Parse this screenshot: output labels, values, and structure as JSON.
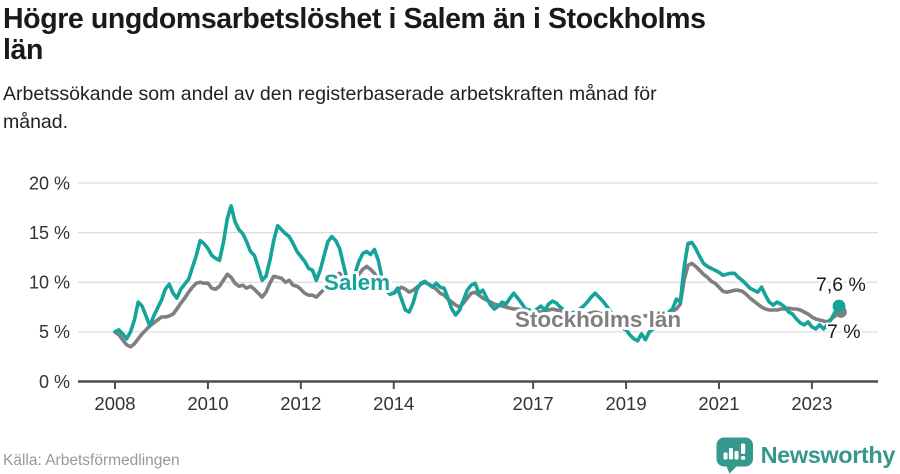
{
  "header": {
    "title_lines": [
      "Högre ungdomsarbetslöshet i Salem än i Stockholms",
      "län"
    ],
    "subtitle_lines": [
      "Arbetssökande som andel av den registerbaserade arbetskraften månad för",
      "månad."
    ]
  },
  "footer": {
    "source": "Källa: Arbetsförmedlingen",
    "brand": "Newsworthy",
    "brand_icon": "newsworthy-speech-bubble-bar-chart-icon"
  },
  "colors": {
    "salem": "#16a39a",
    "stockholm": "#7f7f7f",
    "grid": "#dddddd",
    "axis": "#4d4d4d",
    "tick_text": "#333333",
    "annotation_text": "#1a1a1a",
    "source_text": "#999999",
    "logo": "#35988d",
    "halo": "#ffffff"
  },
  "chart_data": {
    "type": "line",
    "title": "Högre ungdomsarbetslöshet i Salem än i Stockholms län",
    "subtitle": "Arbetssökande som andel av den registerbaserade arbetskraften månad för månad.",
    "unit": "%",
    "frequency": "monthly",
    "x_start": "2008-01",
    "x_end": "2023-08",
    "ylim": [
      0,
      21
    ],
    "grid": true,
    "y_ticks": [
      {
        "value": 0,
        "label": "0 %"
      },
      {
        "value": 5,
        "label": "5 %"
      },
      {
        "value": 10,
        "label": "10 %"
      },
      {
        "value": 15,
        "label": "15 %"
      },
      {
        "value": 20,
        "label": "20 %"
      }
    ],
    "x_ticks": [
      {
        "year": 2008,
        "label": "2008"
      },
      {
        "year": 2010,
        "label": "2010"
      },
      {
        "year": 2012,
        "label": "2012"
      },
      {
        "year": 2014,
        "label": "2014"
      },
      {
        "year": 2017,
        "label": "2017"
      },
      {
        "year": 2019,
        "label": "2019"
      },
      {
        "year": 2021,
        "label": "2021"
      },
      {
        "year": 2023,
        "label": "2023"
      }
    ],
    "series": [
      {
        "name": "Salem",
        "color": "#16a39a",
        "end_label": "7,6 %",
        "end_value": 7.6,
        "values": [
          5.0,
          5.2,
          4.8,
          4.3,
          5.0,
          6.2,
          8.0,
          7.6,
          6.6,
          5.6,
          6.6,
          7.4,
          8.2,
          9.3,
          9.8,
          8.9,
          8.4,
          9.3,
          9.8,
          10.3,
          11.5,
          12.7,
          14.2,
          13.9,
          13.4,
          12.7,
          12.4,
          12.2,
          14.0,
          16.4,
          17.7,
          16.1,
          15.3,
          14.9,
          14.1,
          13.1,
          12.7,
          11.5,
          10.2,
          10.6,
          12.2,
          14.2,
          15.7,
          15.3,
          14.9,
          14.6,
          13.9,
          13.1,
          12.6,
          12.1,
          11.4,
          11.2,
          10.2,
          11.2,
          12.7,
          14.1,
          14.6,
          14.2,
          13.4,
          11.8,
          10.2,
          9.7,
          10.9,
          12.1,
          12.9,
          13.1,
          12.8,
          13.3,
          12.2,
          10.4,
          9.2,
          8.8,
          8.9,
          9.4,
          8.3,
          7.2,
          7.0,
          7.9,
          9.3,
          9.9,
          10.1,
          9.8,
          9.5,
          9.9,
          9.5,
          9.4,
          8.4,
          7.3,
          6.7,
          7.2,
          8.2,
          9.2,
          9.7,
          9.9,
          8.9,
          9.2,
          8.4,
          7.7,
          7.3,
          7.6,
          8.0,
          7.8,
          8.4,
          8.9,
          8.4,
          7.9,
          7.3,
          7.2,
          7.0,
          7.3,
          7.6,
          7.2,
          7.8,
          8.1,
          7.9,
          7.5,
          7.2,
          7.0,
          6.9,
          7.0,
          7.3,
          7.6,
          8.0,
          8.5,
          8.9,
          8.5,
          8.1,
          7.6,
          7.0,
          6.4,
          5.8,
          5.4,
          5.2,
          4.7,
          4.3,
          4.1,
          4.8,
          4.2,
          5.0,
          5.3,
          5.7,
          6.1,
          6.6,
          7.0,
          7.3,
          8.3,
          8.0,
          11.5,
          13.9,
          14.0,
          13.4,
          12.6,
          11.9,
          11.6,
          11.4,
          11.2,
          11.0,
          10.7,
          10.8,
          10.9,
          10.9,
          10.5,
          10.2,
          9.8,
          9.4,
          9.2,
          9.0,
          9.5,
          8.7,
          8.0,
          7.7,
          8.0,
          7.8,
          7.5,
          7.0,
          6.8,
          6.3,
          5.9,
          5.7,
          6.0,
          5.5,
          5.3,
          5.7,
          5.3,
          5.7,
          6.3,
          7.0,
          7.6
        ]
      },
      {
        "name": "Stockholms län",
        "color": "#7f7f7f",
        "end_label": "7 %",
        "end_value": 7.0,
        "values": [
          5.0,
          4.7,
          4.2,
          3.7,
          3.5,
          3.8,
          4.3,
          4.8,
          5.2,
          5.6,
          5.9,
          6.2,
          6.5,
          6.5,
          6.6,
          6.8,
          7.3,
          7.9,
          8.4,
          9.0,
          9.5,
          9.9,
          10.0,
          9.9,
          9.9,
          9.4,
          9.3,
          9.6,
          10.2,
          10.8,
          10.5,
          9.9,
          9.6,
          9.7,
          9.4,
          9.6,
          9.3,
          8.9,
          8.5,
          9.0,
          9.9,
          10.6,
          10.5,
          10.4,
          10.0,
          10.2,
          9.7,
          9.6,
          9.3,
          8.9,
          8.7,
          8.7,
          8.5,
          8.9,
          9.3,
          9.6,
          10.2,
          10.7,
          10.9,
          10.4,
          10.0,
          9.8,
          10.2,
          10.8,
          11.3,
          11.6,
          11.3,
          10.9,
          10.3,
          9.7,
          9.2,
          8.9,
          8.9,
          9.2,
          9.5,
          9.3,
          9.0,
          9.2,
          9.5,
          9.8,
          10.0,
          9.8,
          9.6,
          9.3,
          8.9,
          8.7,
          8.3,
          8.0,
          7.7,
          7.5,
          7.9,
          8.4,
          8.9,
          9.0,
          8.7,
          8.4,
          8.2,
          8.0,
          7.8,
          7.7,
          7.6,
          7.5,
          7.4,
          7.3,
          7.3,
          7.2,
          7.1,
          7.0,
          7.0,
          7.0,
          7.0,
          7.1,
          7.2,
          7.3,
          7.2,
          7.1,
          7.0,
          6.9,
          6.8,
          6.7,
          6.7,
          6.7,
          6.8,
          6.9,
          7.0,
          6.9,
          6.8,
          6.7,
          6.6,
          6.5,
          6.4,
          6.4,
          6.4,
          6.4,
          6.5,
          6.5,
          6.6,
          6.6,
          6.7,
          6.8,
          6.8,
          6.9,
          6.9,
          7.0,
          7.1,
          7.3,
          7.8,
          10.2,
          11.7,
          11.9,
          11.6,
          11.2,
          10.8,
          10.5,
          10.1,
          9.9,
          9.5,
          9.1,
          9.0,
          9.1,
          9.2,
          9.2,
          9.1,
          8.8,
          8.4,
          8.1,
          7.8,
          7.5,
          7.3,
          7.2,
          7.2,
          7.2,
          7.3,
          7.3,
          7.4,
          7.3,
          7.3,
          7.2,
          7.0,
          6.8,
          6.5,
          6.3,
          6.2,
          6.1,
          6.0,
          6.3,
          6.6,
          7.0
        ]
      }
    ],
    "legend_position": "inline-annotations"
  }
}
